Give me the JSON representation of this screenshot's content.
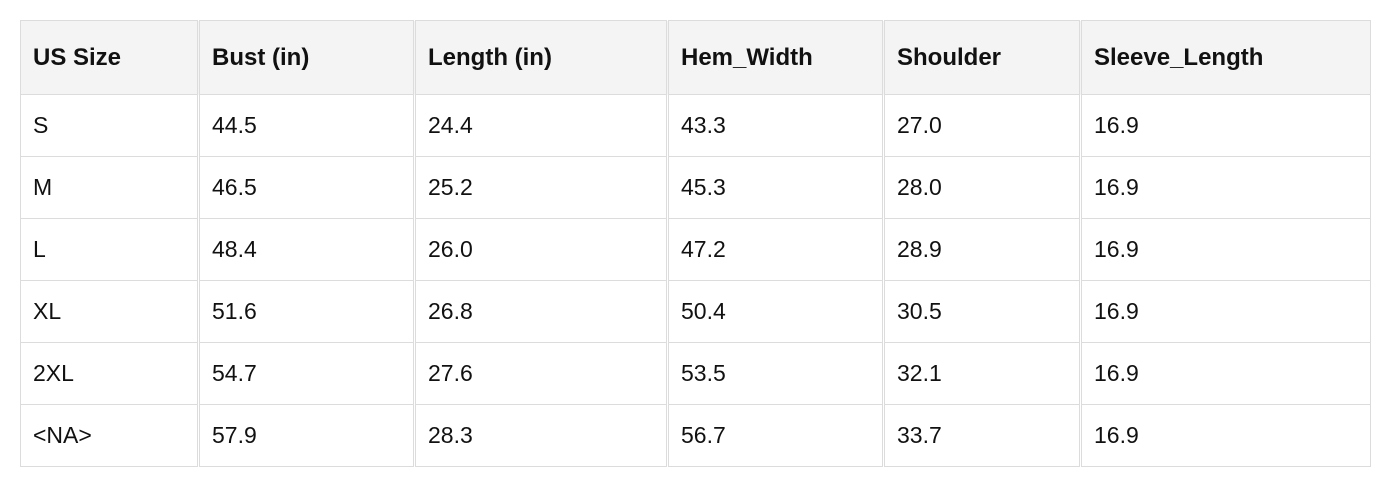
{
  "table": {
    "headers": [
      "US Size",
      "Bust (in)",
      "Length (in)",
      "Hem_Width",
      "Shoulder",
      "Sleeve_Length"
    ],
    "rows": [
      [
        "S",
        "44.5",
        "24.4",
        "43.3",
        "27.0",
        "16.9"
      ],
      [
        "M",
        "46.5",
        "25.2",
        "45.3",
        "28.0",
        "16.9"
      ],
      [
        "L",
        "48.4",
        "26.0",
        "47.2",
        "28.9",
        "16.9"
      ],
      [
        "XL",
        "51.6",
        "26.8",
        "50.4",
        "30.5",
        "16.9"
      ],
      [
        "2XL",
        "54.7",
        "27.6",
        "53.5",
        "32.1",
        "16.9"
      ],
      [
        "<NA>",
        "57.9",
        "28.3",
        "56.7",
        "33.7",
        "16.9"
      ]
    ]
  }
}
